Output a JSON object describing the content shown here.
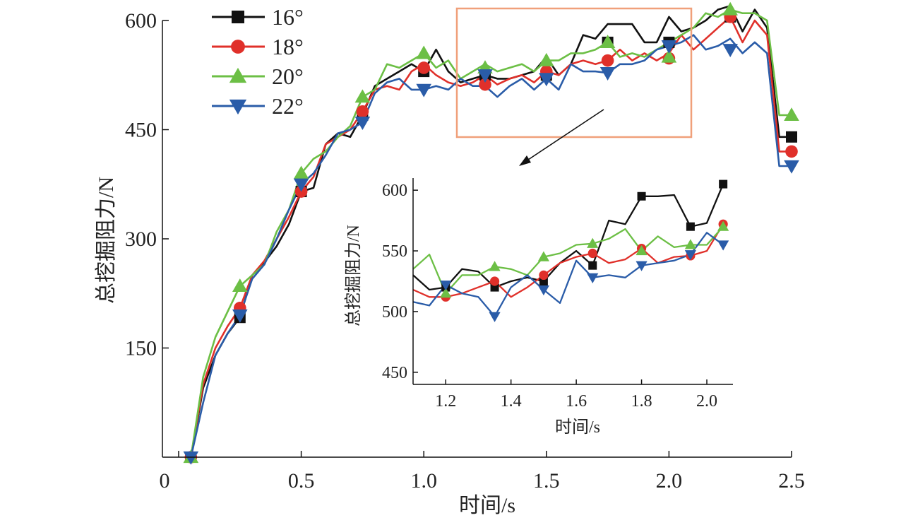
{
  "chart_data": [
    {
      "id": "main",
      "type": "line",
      "xlabel": "时间/s",
      "ylabel": "总挖掘阻力/N",
      "xlim": [
        0,
        2.5
      ],
      "ylim": [
        0,
        600
      ],
      "xticks": [
        0,
        0.5,
        1.0,
        1.5,
        2.0,
        2.5
      ],
      "xtick_labels": [
        "0",
        "0.5",
        "1.0",
        "1.5",
        "2.0",
        "2.5"
      ],
      "yticks": [
        150,
        300,
        450,
        600
      ],
      "ytick_labels": [
        "150",
        "300",
        "450",
        "600"
      ],
      "legend_position": "top-left",
      "series": [
        {
          "name": "16°",
          "color": "#111111",
          "marker": "square",
          "x": [
            0.05,
            0.1,
            0.15,
            0.2,
            0.25,
            0.3,
            0.35,
            0.4,
            0.45,
            0.5,
            0.55,
            0.6,
            0.65,
            0.7,
            0.75,
            0.8,
            0.85,
            0.9,
            0.95,
            1.0,
            1.05,
            1.1,
            1.15,
            1.2,
            1.25,
            1.3,
            1.35,
            1.4,
            1.45,
            1.5,
            1.55,
            1.6,
            1.65,
            1.7,
            1.75,
            1.8,
            1.85,
            1.9,
            1.95,
            2.0,
            2.05,
            2.1,
            2.15,
            2.2,
            2.25,
            2.3,
            2.35,
            2.4,
            2.45,
            2.5
          ],
          "y": [
            0,
            95,
            140,
            170,
            192,
            250,
            268,
            290,
            320,
            365,
            370,
            430,
            445,
            440,
            470,
            510,
            520,
            530,
            540,
            530,
            560,
            530,
            515,
            520,
            525,
            520,
            520,
            525,
            530,
            550,
            525,
            540,
            580,
            575,
            595,
            595,
            595,
            570,
            570,
            605,
            585,
            590,
            600,
            615,
            620,
            585,
            615,
            590,
            440,
            440
          ],
          "marker_x": [
            0.05,
            0.25,
            0.5,
            0.75,
            1.0,
            1.25,
            1.5,
            1.75,
            2.0,
            2.25,
            2.5
          ],
          "marker_y": [
            0,
            192,
            365,
            470,
            530,
            525,
            525,
            570,
            570,
            605,
            440
          ]
        },
        {
          "name": "18°",
          "color": "#e0302a",
          "marker": "circle",
          "x": [
            0.05,
            0.1,
            0.15,
            0.2,
            0.25,
            0.3,
            0.35,
            0.4,
            0.45,
            0.5,
            0.55,
            0.6,
            0.65,
            0.7,
            0.75,
            0.8,
            0.85,
            0.9,
            0.95,
            1.0,
            1.05,
            1.1,
            1.15,
            1.2,
            1.25,
            1.3,
            1.35,
            1.4,
            1.45,
            1.5,
            1.55,
            1.6,
            1.65,
            1.7,
            1.75,
            1.8,
            1.85,
            1.9,
            1.95,
            2.0,
            2.05,
            2.1,
            2.15,
            2.2,
            2.25,
            2.3,
            2.35,
            2.4,
            2.45,
            2.5
          ],
          "y": [
            0,
            100,
            150,
            180,
            205,
            250,
            270,
            300,
            330,
            365,
            385,
            430,
            440,
            450,
            475,
            505,
            510,
            505,
            530,
            540,
            525,
            515,
            510,
            515,
            525,
            512,
            520,
            525,
            515,
            530,
            525,
            540,
            545,
            540,
            545,
            560,
            545,
            555,
            545,
            555,
            580,
            560,
            575,
            590,
            605,
            570,
            600,
            580,
            420,
            420
          ],
          "marker_x": [
            0.05,
            0.25,
            0.5,
            0.75,
            1.0,
            1.25,
            1.5,
            1.75,
            2.0,
            2.25,
            2.5
          ],
          "marker_y": [
            0,
            205,
            365,
            475,
            535,
            512,
            530,
            545,
            548,
            605,
            420
          ]
        },
        {
          "name": "20°",
          "color": "#6cbf45",
          "marker": "triangle-up",
          "x": [
            0.05,
            0.1,
            0.15,
            0.2,
            0.25,
            0.3,
            0.35,
            0.4,
            0.45,
            0.5,
            0.55,
            0.6,
            0.65,
            0.7,
            0.75,
            0.8,
            0.85,
            0.9,
            0.95,
            1.0,
            1.05,
            1.1,
            1.15,
            1.2,
            1.25,
            1.3,
            1.35,
            1.4,
            1.45,
            1.5,
            1.55,
            1.6,
            1.65,
            1.7,
            1.75,
            1.8,
            1.85,
            1.9,
            1.95,
            2.0,
            2.05,
            2.1,
            2.15,
            2.2,
            2.25,
            2.3,
            2.35,
            2.4,
            2.45,
            2.5
          ],
          "y": [
            0,
            110,
            165,
            200,
            235,
            250,
            265,
            310,
            340,
            390,
            410,
            420,
            440,
            455,
            495,
            505,
            540,
            535,
            545,
            555,
            535,
            545,
            520,
            530,
            540,
            530,
            535,
            540,
            530,
            545,
            545,
            555,
            555,
            560,
            570,
            550,
            555,
            550,
            560,
            570,
            580,
            590,
            610,
            605,
            615,
            610,
            610,
            600,
            470,
            470
          ],
          "marker_x": [
            0.05,
            0.25,
            0.5,
            0.75,
            1.0,
            1.25,
            1.5,
            1.75,
            2.0,
            2.25,
            2.5
          ],
          "marker_y": [
            0,
            235,
            390,
            495,
            555,
            535,
            545,
            570,
            550,
            615,
            470
          ]
        },
        {
          "name": "22°",
          "color": "#2a5ca8",
          "marker": "triangle-down",
          "x": [
            0.05,
            0.1,
            0.15,
            0.2,
            0.25,
            0.3,
            0.35,
            0.4,
            0.45,
            0.5,
            0.55,
            0.6,
            0.65,
            0.7,
            0.75,
            0.8,
            0.85,
            0.9,
            0.95,
            1.0,
            1.05,
            1.1,
            1.15,
            1.2,
            1.25,
            1.3,
            1.35,
            1.4,
            1.45,
            1.5,
            1.55,
            1.6,
            1.65,
            1.7,
            1.75,
            1.8,
            1.85,
            1.9,
            1.95,
            2.0,
            2.05,
            2.1,
            2.15,
            2.2,
            2.25,
            2.3,
            2.35,
            2.4,
            2.45,
            2.5
          ],
          "y": [
            0,
            75,
            140,
            170,
            195,
            245,
            265,
            300,
            340,
            375,
            390,
            415,
            445,
            450,
            460,
            500,
            515,
            520,
            505,
            505,
            510,
            505,
            520,
            510,
            510,
            495,
            510,
            520,
            505,
            520,
            505,
            540,
            530,
            530,
            528,
            540,
            540,
            545,
            560,
            565,
            570,
            580,
            560,
            565,
            575,
            555,
            570,
            555,
            400,
            400
          ],
          "marker_x": [
            0.05,
            0.25,
            0.5,
            0.75,
            1.0,
            1.25,
            1.5,
            1.75,
            2.0,
            2.25,
            2.5
          ],
          "marker_y": [
            0,
            195,
            375,
            460,
            505,
            525,
            520,
            528,
            565,
            560,
            400
          ]
        }
      ]
    },
    {
      "id": "inset",
      "type": "line",
      "xlabel": "时间/s",
      "ylabel": "总挖掘阻力/N",
      "xlim": [
        1.1,
        2.08
      ],
      "ylim": [
        440,
        610
      ],
      "xticks": [
        1.2,
        1.4,
        1.6,
        1.8,
        2.0
      ],
      "xtick_labels": [
        "1.2",
        "1.4",
        "1.6",
        "1.8",
        "2.0"
      ],
      "yticks": [
        450,
        500,
        550,
        600
      ],
      "ytick_labels": [
        "450",
        "500",
        "550",
        "600"
      ],
      "series": [
        {
          "name": "16°",
          "color": "#111111",
          "marker": "square",
          "x": [
            1.1,
            1.15,
            1.2,
            1.25,
            1.3,
            1.35,
            1.4,
            1.45,
            1.5,
            1.55,
            1.6,
            1.65,
            1.7,
            1.75,
            1.8,
            1.85,
            1.9,
            1.95,
            2.0,
            2.05
          ],
          "y": [
            530,
            518,
            520,
            535,
            533,
            520,
            525,
            528,
            525,
            540,
            550,
            538,
            575,
            572,
            595,
            595,
            596,
            570,
            573,
            605
          ],
          "marker_x": [
            1.2,
            1.35,
            1.5,
            1.65,
            1.8,
            1.95,
            2.05
          ],
          "marker_y": [
            520,
            520,
            525,
            538,
            595,
            570,
            605
          ]
        },
        {
          "name": "18°",
          "color": "#e0302a",
          "marker": "circle",
          "x": [
            1.1,
            1.15,
            1.2,
            1.25,
            1.3,
            1.35,
            1.4,
            1.45,
            1.5,
            1.55,
            1.6,
            1.65,
            1.7,
            1.75,
            1.8,
            1.85,
            1.9,
            1.95,
            2.0,
            2.05
          ],
          "y": [
            518,
            512,
            512,
            515,
            520,
            525,
            512,
            520,
            530,
            540,
            545,
            548,
            540,
            543,
            552,
            540,
            545,
            546,
            550,
            572
          ],
          "marker_x": [
            1.2,
            1.35,
            1.5,
            1.65,
            1.8,
            1.95,
            2.05
          ],
          "marker_y": [
            512,
            525,
            530,
            548,
            552,
            546,
            572
          ]
        },
        {
          "name": "20°",
          "color": "#6cbf45",
          "marker": "triangle-up",
          "x": [
            1.1,
            1.15,
            1.2,
            1.25,
            1.3,
            1.35,
            1.4,
            1.45,
            1.5,
            1.55,
            1.6,
            1.65,
            1.7,
            1.75,
            1.8,
            1.85,
            1.9,
            1.95,
            2.0,
            2.05
          ],
          "y": [
            535,
            547,
            515,
            530,
            530,
            537,
            535,
            530,
            545,
            548,
            555,
            556,
            560,
            568,
            550,
            562,
            553,
            555,
            555,
            570
          ],
          "marker_x": [
            1.2,
            1.35,
            1.5,
            1.65,
            1.8,
            1.95,
            2.05
          ],
          "marker_y": [
            515,
            537,
            545,
            556,
            550,
            555,
            570
          ]
        },
        {
          "name": "22°",
          "color": "#2a5ca8",
          "marker": "triangle-down",
          "x": [
            1.1,
            1.15,
            1.2,
            1.25,
            1.3,
            1.35,
            1.4,
            1.45,
            1.5,
            1.55,
            1.6,
            1.65,
            1.7,
            1.75,
            1.8,
            1.85,
            1.9,
            1.95,
            2.0,
            2.05
          ],
          "y": [
            508,
            505,
            522,
            515,
            512,
            496,
            520,
            530,
            518,
            507,
            542,
            528,
            530,
            528,
            538,
            540,
            542,
            547,
            565,
            555
          ],
          "marker_x": [
            1.2,
            1.35,
            1.5,
            1.65,
            1.8,
            1.95,
            2.05
          ],
          "marker_y": [
            522,
            496,
            518,
            528,
            538,
            547,
            555
          ]
        }
      ]
    }
  ]
}
